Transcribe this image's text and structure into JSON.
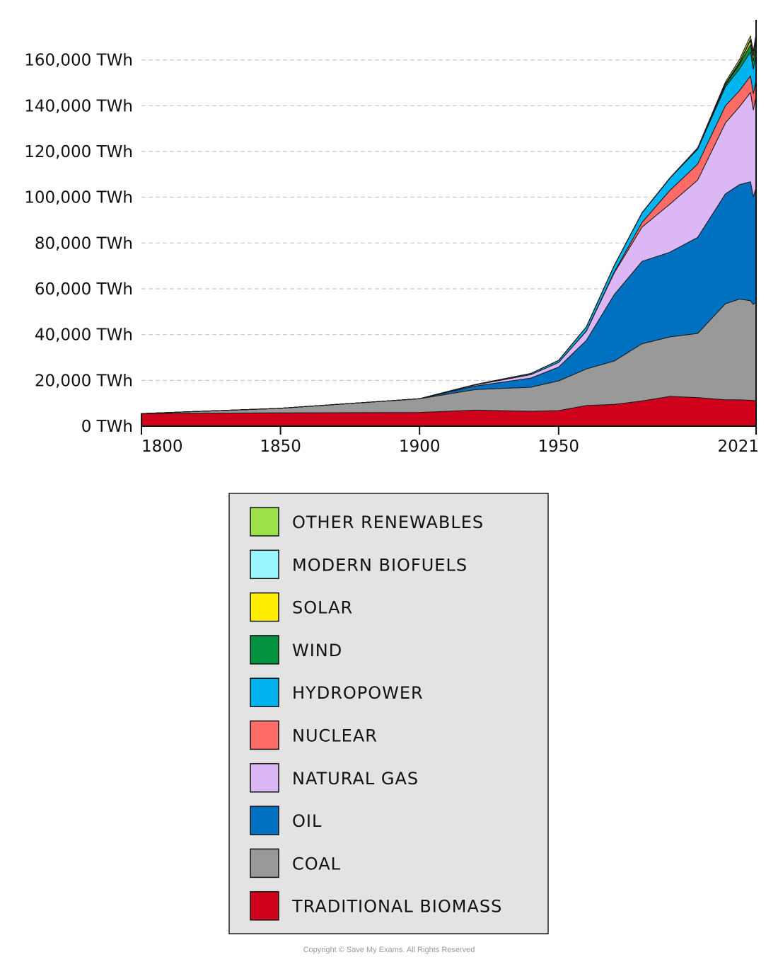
{
  "chart_data": {
    "type": "area",
    "stacked": true,
    "title": "",
    "xlabel": "",
    "ylabel": "",
    "ylim": [
      0,
      170000
    ],
    "xlim": [
      1800,
      2021
    ],
    "grid": "horizontal dashed",
    "y_ticks": [
      {
        "value": 0,
        "label": "0 TWh"
      },
      {
        "value": 20000,
        "label": "20,000 TWh"
      },
      {
        "value": 40000,
        "label": "40,000 TWh"
      },
      {
        "value": 60000,
        "label": "60,000 TWh"
      },
      {
        "value": 80000,
        "label": "80,000 TWh"
      },
      {
        "value": 100000,
        "label": "100,000 TWh"
      },
      {
        "value": 120000,
        "label": "120,000 TWh"
      },
      {
        "value": 140000,
        "label": "140,000 TWh"
      },
      {
        "value": 160000,
        "label": "160,000 TWh"
      }
    ],
    "x_ticks": [
      {
        "value": 1800,
        "label": "1800"
      },
      {
        "value": 1850,
        "label": "1850"
      },
      {
        "value": 1900,
        "label": "1900"
      },
      {
        "value": 1950,
        "label": "1950"
      },
      {
        "value": 2021,
        "label": "2021"
      }
    ],
    "x": [
      1800,
      1850,
      1900,
      1920,
      1940,
      1950,
      1960,
      1970,
      1980,
      1990,
      2000,
      2010,
      2015,
      2019,
      2020,
      2021
    ],
    "series": [
      {
        "name": "TRADITIONAL BIOMASS",
        "color": "#d0021b",
        "values": [
          5500,
          5800,
          6000,
          7000,
          6500,
          6800,
          9000,
          9500,
          11000,
          13000,
          12500,
          11500,
          11500,
          11300,
          11200,
          11100
        ]
      },
      {
        "name": "COAL",
        "color": "#999999",
        "values": [
          0,
          2000,
          6000,
          9000,
          10500,
          13000,
          16000,
          19000,
          25000,
          26000,
          28000,
          42000,
          44000,
          43500,
          42000,
          43000
        ]
      },
      {
        "name": "OIL",
        "color": "#0070c0",
        "values": [
          0,
          0,
          0,
          1500,
          4000,
          6000,
          12500,
          29000,
          36000,
          37000,
          42000,
          48000,
          50000,
          52000,
          47000,
          50000
        ]
      },
      {
        "name": "NATURAL GAS",
        "color": "#dbb8f5",
        "values": [
          0,
          0,
          0,
          500,
          1500,
          2000,
          4000,
          9500,
          15000,
          21000,
          25000,
          31000,
          34000,
          39000,
          38000,
          40000
        ]
      },
      {
        "name": "NUCLEAR",
        "color": "#ff6b66",
        "values": [
          0,
          0,
          0,
          0,
          0,
          0,
          100,
          400,
          2000,
          6000,
          7000,
          7500,
          7000,
          7200,
          7000,
          7200
        ]
      },
      {
        "name": "HYDROPOWER",
        "color": "#00b4f0",
        "values": [
          0,
          0,
          0,
          200,
          500,
          900,
          1800,
          2800,
          4200,
          5300,
          6500,
          8300,
          9500,
          10500,
          10800,
          11000
        ]
      },
      {
        "name": "WIND",
        "color": "#00923f",
        "values": [
          0,
          0,
          0,
          0,
          0,
          0,
          0,
          0,
          0,
          0,
          100,
          900,
          2000,
          3200,
          3600,
          4200
        ]
      },
      {
        "name": "SOLAR",
        "color": "#ffee00",
        "values": [
          0,
          0,
          0,
          0,
          0,
          0,
          0,
          0,
          0,
          0,
          0,
          100,
          600,
          1800,
          2200,
          2700
        ]
      },
      {
        "name": "MODERN BIOFUELS",
        "color": "#9bf7ff",
        "values": [
          0,
          0,
          0,
          0,
          0,
          0,
          0,
          0,
          0,
          0,
          100,
          300,
          350,
          400,
          380,
          400
        ]
      },
      {
        "name": "OTHER RENEWABLES",
        "color": "#9de24a",
        "values": [
          0,
          0,
          0,
          0,
          0,
          0,
          0,
          0,
          100,
          200,
          400,
          800,
          1200,
          1600,
          1700,
          1800
        ]
      }
    ],
    "legend_position": "bottom-center",
    "legend_order": [
      "OTHER RENEWABLES",
      "MODERN BIOFUELS",
      "SOLAR",
      "WIND",
      "HYDROPOWER",
      "NUCLEAR",
      "NATURAL GAS",
      "OIL",
      "COAL",
      "TRADITIONAL BIOMASS"
    ]
  },
  "copyright": "Copyright © Save My Exams. All Rights Reserved"
}
